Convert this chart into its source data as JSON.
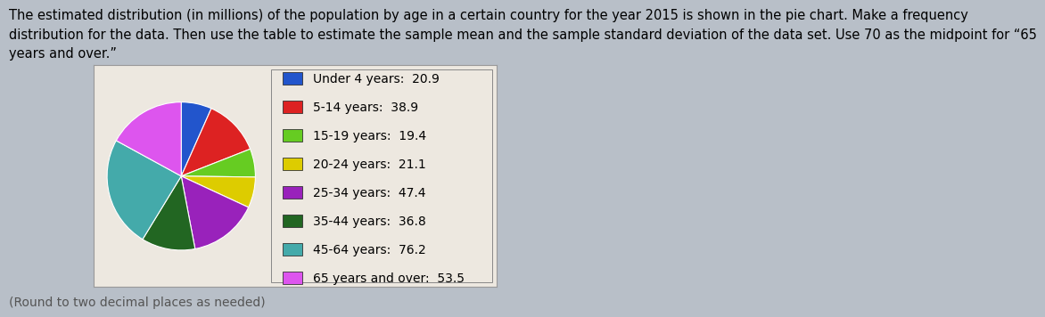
{
  "title_line1": "The estimated distribution (in millions) of the population by age in a certain country for the year 2015 is shown in the pie chart. Make a frequency",
  "title_line2": "distribution for the data. Then use the table to estimate the sample mean and the sample standard deviation of the data set. Use 70 as the midpoint for “65",
  "title_line3": "years and over.”",
  "labels": [
    "Under 4 years",
    "5-14 years",
    "15-19 years",
    "20-24 years",
    "25-34 years",
    "35-44 years",
    "45-64 years",
    "65 years and over"
  ],
  "values": [
    20.9,
    38.9,
    19.4,
    21.1,
    47.4,
    36.8,
    76.2,
    53.5
  ],
  "colors": [
    "#2255cc",
    "#dd2222",
    "#66cc22",
    "#ddcc00",
    "#9922bb",
    "#226622",
    "#44aaaa",
    "#dd55ee"
  ],
  "legend_labels": [
    "Under 4 years:  20.9",
    "5-14 years:  38.9",
    "15-19 years:  19.4",
    "20-24 years:  21.1",
    "25-34 years:  47.4",
    "35-44 years:  36.8",
    "45-64 years:  76.2",
    "65 years and over:  53.5"
  ],
  "footnote": "(Round to two decimal places as needed)",
  "background_color": "#b8bfc8",
  "box_background": "#ede8e0",
  "title_fontsize": 10.5,
  "legend_fontsize": 10
}
